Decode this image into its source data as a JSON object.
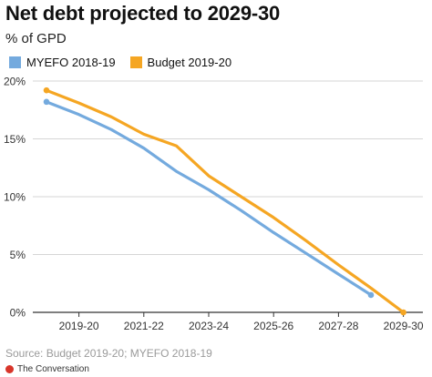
{
  "title": "Net debt projected to 2029-30",
  "subtitle": "% of GPD",
  "source": "Source: Budget 2019-20; MYEFO 2018-19",
  "credit": "The Conversation",
  "colors": {
    "myefo": "#74aade",
    "budget": "#f5a623",
    "grid": "#d6d6d6",
    "axis": "#333333",
    "credit_logo": "#d8352a"
  },
  "chart_data": {
    "type": "line",
    "x": [
      "2018-19",
      "2019-20",
      "2020-21",
      "2021-22",
      "2022-23",
      "2023-24",
      "2024-25",
      "2025-26",
      "2026-27",
      "2027-28",
      "2028-29",
      "2029-30"
    ],
    "x_tick_labels": [
      "2019-20",
      "2021-22",
      "2023-24",
      "2025-26",
      "2027-28",
      "2029-30"
    ],
    "y_tick_labels": [
      "0%",
      "5%",
      "10%",
      "15%",
      "20%"
    ],
    "ylim": [
      0,
      20
    ],
    "grid": true,
    "legend_position": "top-left",
    "series": [
      {
        "name": "MYEFO 2018-19",
        "values": [
          18.2,
          17.1,
          15.8,
          14.2,
          12.2,
          10.6,
          8.8,
          6.9,
          5.1,
          3.3,
          1.5,
          null
        ]
      },
      {
        "name": "Budget 2019-20",
        "values": [
          19.2,
          18.1,
          16.9,
          15.4,
          14.4,
          11.8,
          10.0,
          8.2,
          6.2,
          4.1,
          2.1,
          0.0
        ]
      }
    ]
  }
}
